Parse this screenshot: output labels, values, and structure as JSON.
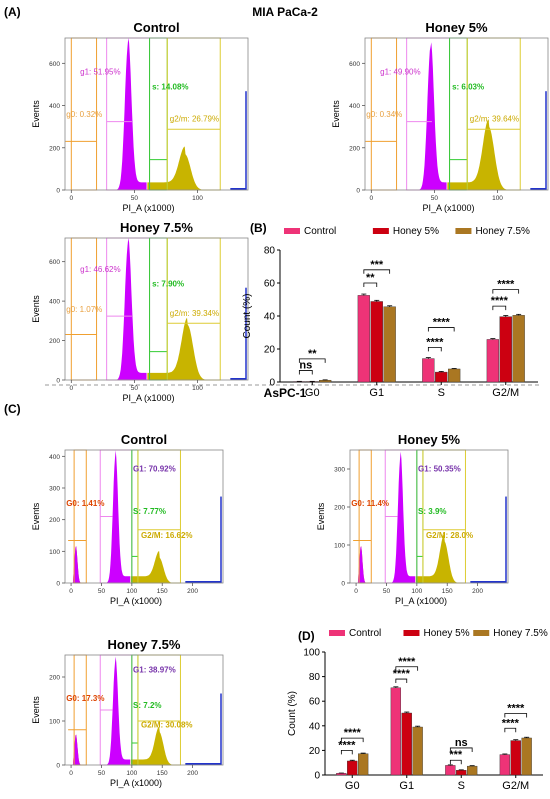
{
  "panels": {
    "A": {
      "label": "(A)",
      "cell_line": "MIA PaCa-2"
    },
    "B": {
      "label": "(B)"
    },
    "C": {
      "label": "(C)",
      "cell_line": "AsPC-1"
    },
    "D": {
      "label": "(D)"
    }
  },
  "colors": {
    "g1": "#cc00ff",
    "s_peak": "#c8b400",
    "g0": "#e87b00",
    "g1_text_a": "#cc33cc",
    "g1_text_c": "#7733aa",
    "g0_text_a": "#e8a040",
    "g0_text_c": "#dd4400",
    "s_text": "#22bb22",
    "g2m_text": "#ccaa00",
    "gate_orange": "#f0a030",
    "gate_pink": "#ee88ee",
    "gate_green": "#33cc33",
    "gate_yellow": "#ddcc33",
    "tail_blue": "#2233cc",
    "bar_control": "#ee3377",
    "bar_h5": "#cc0011",
    "bar_h75": "#aa7722"
  },
  "chart_data": [
    {
      "type": "histogram",
      "name": "mia-control",
      "title": "Control",
      "xlabel": "PI_A (x1000)",
      "ylabel": "Events",
      "x_ticks": [
        "0",
        "50",
        "100"
      ],
      "y_ticks": [
        "0",
        "200",
        "400",
        "600"
      ],
      "xlim": [
        -5,
        140
      ],
      "ylim": [
        0,
        720
      ],
      "gates": {
        "g0": "g0: 0.32%",
        "g1": "g1: 51.95%",
        "s": "s: 14.08%",
        "g2m": "g2/m: 26.79%"
      },
      "g1_peak": {
        "center": 45,
        "height": 690,
        "width": 2.6
      },
      "g2m_peak": {
        "center": 90,
        "height": 170,
        "width": 4.5
      }
    },
    {
      "type": "histogram",
      "name": "mia-honey5",
      "title": "Honey 5%",
      "xlabel": "PI_A (x1000)",
      "ylabel": "Events",
      "x_ticks": [
        "0",
        "50",
        "100"
      ],
      "y_ticks": [
        "0",
        "200",
        "400",
        "600"
      ],
      "xlim": [
        -5,
        140
      ],
      "ylim": [
        0,
        720
      ],
      "gates": {
        "g0": "g0: 0.34%",
        "g1": "g1: 49.90%",
        "s": "s: 6.03%",
        "g2m": "g2/m: 39.64%"
      },
      "g1_peak": {
        "center": 47,
        "height": 680,
        "width": 2.6
      },
      "g2m_peak": {
        "center": 93,
        "height": 300,
        "width": 4.5
      }
    },
    {
      "type": "histogram",
      "name": "mia-honey75",
      "title": "Honey 7.5%",
      "xlabel": "PI_A (x1000)",
      "ylabel": "Events",
      "x_ticks": [
        "0",
        "50",
        "100"
      ],
      "y_ticks": [
        "0",
        "200",
        "400",
        "600"
      ],
      "xlim": [
        -5,
        140
      ],
      "ylim": [
        0,
        720
      ],
      "gates": {
        "g0": "g0: 1.07%",
        "g1": "g1: 46.62%",
        "s": "s: 7.90%",
        "g2m": "g2/m: 39.34%"
      },
      "g1_peak": {
        "center": 45,
        "height": 690,
        "width": 2.6
      },
      "g2m_peak": {
        "center": 92,
        "height": 280,
        "width": 4.5
      }
    },
    {
      "type": "bar",
      "name": "mia-bars",
      "categories": [
        "G0",
        "G1",
        "S",
        "G2/M"
      ],
      "ylabel": "Count (%)",
      "ylim": [
        0,
        80
      ],
      "y_ticks": [
        "0",
        "20",
        "40",
        "60",
        "80"
      ],
      "series": [
        {
          "name": "Control",
          "values": [
            0.3,
            52.5,
            14.2,
            25.8
          ],
          "errors": [
            0.1,
            0.8,
            0.6,
            0.5
          ]
        },
        {
          "name": "Honey 5%",
          "values": [
            0.3,
            48.8,
            6.0,
            39.6
          ],
          "errors": [
            0.1,
            0.7,
            0.4,
            0.7
          ]
        },
        {
          "name": "Honey 7.5%",
          "values": [
            1.1,
            45.6,
            7.9,
            40.4
          ],
          "errors": [
            0.2,
            0.6,
            0.3,
            0.6
          ]
        }
      ],
      "significance": [
        {
          "group": 0,
          "from": 0,
          "to": 1,
          "label": "ns",
          "y": 7
        },
        {
          "group": 0,
          "from": 0,
          "to": 2,
          "label": "**",
          "y": 14
        },
        {
          "group": 1,
          "from": 0,
          "to": 1,
          "label": "**",
          "y": 60
        },
        {
          "group": 1,
          "from": 0,
          "to": 2,
          "label": "***",
          "y": 68
        },
        {
          "group": 2,
          "from": 0,
          "to": 1,
          "label": "****",
          "y": 21
        },
        {
          "group": 2,
          "from": 0,
          "to": 2,
          "label": "****",
          "y": 33
        },
        {
          "group": 3,
          "from": 0,
          "to": 1,
          "label": "****",
          "y": 46
        },
        {
          "group": 3,
          "from": 0,
          "to": 2,
          "label": "****",
          "y": 56
        }
      ]
    },
    {
      "type": "histogram",
      "name": "aspc-control",
      "title": "Control",
      "xlabel": "PI_A (x1000)",
      "ylabel": "Events",
      "x_ticks": [
        "0",
        "50",
        "100",
        "150",
        "200"
      ],
      "y_ticks": [
        "0",
        "100",
        "200",
        "300",
        "400"
      ],
      "xlim": [
        -10,
        250
      ],
      "ylim": [
        0,
        420
      ],
      "gates": {
        "g0": "G0: 1.41%",
        "g1": "G1: 70.92%",
        "s": "S: 7.77%",
        "g2m": "G2/M: 16.62%"
      },
      "g1_peak": {
        "center": 73,
        "height": 400,
        "width": 4.2
      },
      "g2m_peak": {
        "center": 145,
        "height": 80,
        "width": 7
      }
    },
    {
      "type": "histogram",
      "name": "aspc-honey5",
      "title": "Honey 5%",
      "xlabel": "PI_A (x1000)",
      "ylabel": "Events",
      "x_ticks": [
        "0",
        "50",
        "100",
        "150",
        "200"
      ],
      "y_ticks": [
        "0",
        "100",
        "200",
        "300"
      ],
      "xlim": [
        -10,
        250
      ],
      "ylim": [
        0,
        350
      ],
      "gates": {
        "g0": "G0: 11.4%",
        "g1": "G1: 50.35%",
        "s": "S: 3.9%",
        "g2m": "G2/M: 28.0%"
      },
      "g1_peak": {
        "center": 73,
        "height": 330,
        "width": 4.2
      },
      "g2m_peak": {
        "center": 145,
        "height": 110,
        "width": 7
      }
    },
    {
      "type": "histogram",
      "name": "aspc-honey75",
      "title": "Honey 7.5%",
      "xlabel": "PI_A (x1000)",
      "ylabel": "Events",
      "x_ticks": [
        "0",
        "50",
        "100",
        "150",
        "200"
      ],
      "y_ticks": [
        "0",
        "100",
        "200"
      ],
      "xlim": [
        -10,
        250
      ],
      "ylim": [
        0,
        250
      ],
      "gates": {
        "g0": "G0: 17.3%",
        "g1": "G1: 38.97%",
        "s": "S: 7.2%",
        "g2m": "G2/M: 30.08%"
      },
      "g1_peak": {
        "center": 73,
        "height": 235,
        "width": 4.2
      },
      "g2m_peak": {
        "center": 145,
        "height": 75,
        "width": 7
      }
    },
    {
      "type": "bar",
      "name": "aspc-bars",
      "categories": [
        "G0",
        "G1",
        "S",
        "G2/M"
      ],
      "ylabel": "Count (%)",
      "ylim": [
        0,
        100
      ],
      "y_ticks": [
        "0",
        "20",
        "40",
        "60",
        "80",
        "100"
      ],
      "series": [
        {
          "name": "Control",
          "values": [
            1.4,
            70.9,
            7.8,
            16.6
          ],
          "errors": [
            0.2,
            0.8,
            0.4,
            0.5
          ]
        },
        {
          "name": "Honey 5%",
          "values": [
            11.4,
            50.4,
            3.9,
            28.0
          ],
          "errors": [
            0.6,
            0.8,
            0.3,
            0.7
          ]
        },
        {
          "name": "Honey 7.5%",
          "values": [
            17.3,
            39.0,
            7.2,
            30.1
          ],
          "errors": [
            0.5,
            0.7,
            0.4,
            0.6
          ]
        }
      ],
      "significance": [
        {
          "group": 0,
          "from": 0,
          "to": 1,
          "label": "****",
          "y": 20
        },
        {
          "group": 0,
          "from": 0,
          "to": 2,
          "label": "****",
          "y": 30
        },
        {
          "group": 1,
          "from": 0,
          "to": 1,
          "label": "****",
          "y": 78
        },
        {
          "group": 1,
          "from": 0,
          "to": 2,
          "label": "****",
          "y": 88
        },
        {
          "group": 2,
          "from": 0,
          "to": 1,
          "label": "***",
          "y": 12
        },
        {
          "group": 2,
          "from": 0,
          "to": 2,
          "label": "ns",
          "y": 22
        },
        {
          "group": 3,
          "from": 0,
          "to": 1,
          "label": "****",
          "y": 38
        },
        {
          "group": 3,
          "from": 0,
          "to": 2,
          "label": "****",
          "y": 50
        }
      ]
    }
  ]
}
